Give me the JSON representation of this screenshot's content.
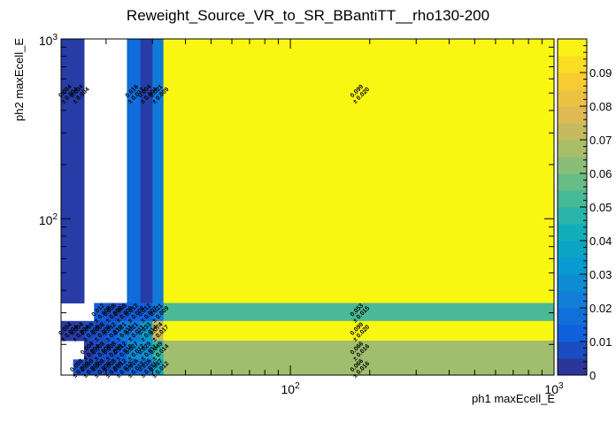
{
  "chart_data": {
    "type": "heatmap",
    "title": "Reweight_Source_VR_to_SR_BBantiTT__rho130-200",
    "xlabel": "ph1 maxEcell_E",
    "ylabel": "ph2 maxEcell_E",
    "x_scale": "log",
    "y_scale": "log",
    "xlim": [
      13.5,
      1000
    ],
    "ylim": [
      13.5,
      1000
    ],
    "x_ticks": [
      {
        "value": 100,
        "label": "10^2"
      },
      {
        "value": 1000,
        "label": "10^3"
      }
    ],
    "y_ticks": [
      {
        "value": 100,
        "label": "10^2"
      },
      {
        "value": 1000,
        "label": "10^3"
      }
    ],
    "x_edges": [
      13.5,
      15,
      16.5,
      18,
      20,
      22,
      24,
      27,
      30,
      33,
      1000
    ],
    "y_edges": [
      13.5,
      16.5,
      21,
      27,
      34,
      1000
    ],
    "z_range": [
      0,
      0.1
    ],
    "colorbar_ticks": [
      "0",
      "0.01",
      "0.02",
      "0.03",
      "0.04",
      "0.05",
      "0.06",
      "0.07",
      "0.08",
      "0.09"
    ],
    "cells": [
      {
        "ix": 0,
        "iy": 4,
        "value": 0.004,
        "error": "0.004",
        "value_label": "0.004"
      },
      {
        "ix": 1,
        "iy": 4,
        "value": 0.004,
        "error": "0.004",
        "value_label": "0.004"
      },
      {
        "ix": 6,
        "iy": 4,
        "value": 0.016,
        "error": "0.012",
        "value_label": "0.016"
      },
      {
        "ix": 7,
        "iy": 4,
        "value": 0.004,
        "error": "0.004",
        "value_label": "0.004"
      },
      {
        "ix": 8,
        "iy": 4,
        "value": 0.021,
        "error": "0.009",
        "value_label": "0.021"
      },
      {
        "ix": 9,
        "iy": 4,
        "value": 0.099,
        "error": "0.020",
        "value_label": "0.099"
      },
      {
        "ix": 3,
        "iy": 3,
        "value": 0.012,
        "error": "0.008",
        "value_label": "0.012"
      },
      {
        "ix": 4,
        "iy": 3,
        "value": 0.008,
        "error": "0.008",
        "value_label": "0.008"
      },
      {
        "ix": 5,
        "iy": 3,
        "value": 0.008,
        "error": "0.008",
        "value_label": "0.008"
      },
      {
        "ix": 6,
        "iy": 3,
        "value": 0.012,
        "error": "0.008",
        "value_label": "0.012"
      },
      {
        "ix": 7,
        "iy": 3,
        "value": 0.012,
        "error": "0.007",
        "value_label": "0.012"
      },
      {
        "ix": 8,
        "iy": 3,
        "value": 0.021,
        "error": "0.009",
        "value_label": "0.021"
      },
      {
        "ix": 9,
        "iy": 3,
        "value": 0.053,
        "error": "0.015",
        "value_label": "0.053"
      },
      {
        "ix": 0,
        "iy": 2,
        "value": 0.004,
        "error": "0.004",
        "value_label": "0.004"
      },
      {
        "ix": 1,
        "iy": 2,
        "value": 0.004,
        "error": "0.004",
        "value_label": "0.004"
      },
      {
        "ix": 2,
        "iy": 2,
        "value": 0.008,
        "error": "0.008",
        "value_label": "0.008"
      },
      {
        "ix": 3,
        "iy": 2,
        "value": 0.008,
        "error": "0.008",
        "value_label": "0.008"
      },
      {
        "ix": 4,
        "iy": 2,
        "value": 0.012,
        "error": "0.010",
        "value_label": "0.012"
      },
      {
        "ix": 5,
        "iy": 2,
        "value": 0.021,
        "error": "0.011",
        "value_label": "0.021"
      },
      {
        "ix": 6,
        "iy": 2,
        "value": 0.021,
        "error": "0.011",
        "value_label": "0.021"
      },
      {
        "ix": 7,
        "iy": 2,
        "value": 0.033,
        "error": "0.014",
        "value_label": "0.033"
      },
      {
        "ix": 8,
        "iy": 2,
        "value": 0.074,
        "error": "0.017",
        "value_label": "0.074"
      },
      {
        "ix": 9,
        "iy": 2,
        "value": 0.099,
        "error": "0.020",
        "value_label": "0.099"
      },
      {
        "ix": 2,
        "iy": 1,
        "value": 0.004,
        "error": "0.004",
        "value_label": "0.004"
      },
      {
        "ix": 3,
        "iy": 1,
        "value": 0.008,
        "error": "0.008",
        "value_label": "0.008"
      },
      {
        "ix": 4,
        "iy": 1,
        "value": 0.008,
        "error": "0.008",
        "value_label": "0.008"
      },
      {
        "ix": 5,
        "iy": 1,
        "value": 0.012,
        "error": "0.010",
        "value_label": "0.012"
      },
      {
        "ix": 6,
        "iy": 1,
        "value": 0.027,
        "error": "0.012",
        "value_label": "0.027"
      },
      {
        "ix": 7,
        "iy": 1,
        "value": 0.029,
        "error": "0.011",
        "value_label": "0.029"
      },
      {
        "ix": 8,
        "iy": 1,
        "value": 0.049,
        "error": "0.014",
        "value_label": "0.049"
      },
      {
        "ix": 9,
        "iy": 1,
        "value": 0.066,
        "error": "0.016",
        "value_label": "0.066"
      },
      {
        "ix": 1,
        "iy": 0,
        "value": 0.008,
        "error": "0.008",
        "value_label": "0.008"
      },
      {
        "ix": 2,
        "iy": 0,
        "value": 0.008,
        "error": "0.008",
        "value_label": "0.008"
      },
      {
        "ix": 3,
        "iy": 0,
        "value": 0.008,
        "error": "0.008",
        "value_label": "0.008"
      },
      {
        "ix": 4,
        "iy": 0,
        "value": 0.008,
        "error": "0.008",
        "value_label": "0.008"
      },
      {
        "ix": 5,
        "iy": 0,
        "value": 0.012,
        "error": "0.012",
        "value_label": "0.012"
      },
      {
        "ix": 6,
        "iy": 0,
        "value": 0.016,
        "error": "0.012",
        "value_label": "0.016"
      },
      {
        "ix": 7,
        "iy": 0,
        "value": 0.016,
        "error": "0.011",
        "value_label": "0.016"
      },
      {
        "ix": 8,
        "iy": 0,
        "value": 0.037,
        "error": "0.012",
        "value_label": "0.037"
      },
      {
        "ix": 9,
        "iy": 0,
        "value": 0.066,
        "error": "0.016",
        "value_label": "0.066"
      }
    ]
  }
}
